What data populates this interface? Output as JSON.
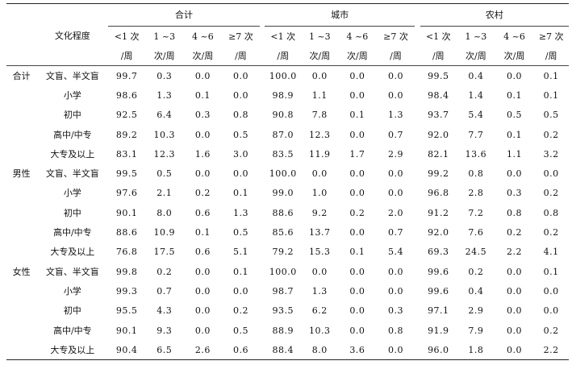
{
  "header": {
    "education_label": "文化程度",
    "groups": [
      "合计",
      "城市",
      "农村"
    ],
    "freq_line1": [
      "<1 次",
      "1 ~3",
      "4 ~6",
      "≥7 次"
    ],
    "freq_line2": [
      "/周",
      "次/周",
      "次/周",
      "/周"
    ]
  },
  "sections": [
    {
      "label": "合计",
      "rows": [
        {
          "level": "文盲、半文盲",
          "values": [
            "99.7",
            "0.3",
            "0.0",
            "0.0",
            "100.0",
            "0.0",
            "0.0",
            "0.0",
            "99.5",
            "0.4",
            "0.0",
            "0.1"
          ]
        },
        {
          "level": "小学",
          "values": [
            "98.6",
            "1.3",
            "0.1",
            "0.0",
            "98.9",
            "1.1",
            "0.0",
            "0.0",
            "98.4",
            "1.4",
            "0.1",
            "0.1"
          ]
        },
        {
          "level": "初中",
          "values": [
            "92.5",
            "6.4",
            "0.3",
            "0.8",
            "90.8",
            "7.8",
            "0.1",
            "1.3",
            "93.7",
            "5.4",
            "0.5",
            "0.5"
          ]
        },
        {
          "level": "高中/中专",
          "values": [
            "89.2",
            "10.3",
            "0.0",
            "0.5",
            "87.0",
            "12.3",
            "0.0",
            "0.7",
            "92.0",
            "7.7",
            "0.1",
            "0.2"
          ]
        },
        {
          "level": "大专及以上",
          "values": [
            "83.1",
            "12.3",
            "1.6",
            "3.0",
            "83.5",
            "11.9",
            "1.7",
            "2.9",
            "82.1",
            "13.6",
            "1.1",
            "3.2"
          ]
        }
      ]
    },
    {
      "label": "男性",
      "rows": [
        {
          "level": "文盲、半文盲",
          "values": [
            "99.5",
            "0.5",
            "0.0",
            "0.0",
            "100.0",
            "0.0",
            "0.0",
            "0.0",
            "99.2",
            "0.8",
            "0.0",
            "0.0"
          ]
        },
        {
          "level": "小学",
          "values": [
            "97.6",
            "2.1",
            "0.2",
            "0.1",
            "99.0",
            "1.0",
            "0.0",
            "0.0",
            "96.8",
            "2.8",
            "0.3",
            "0.2"
          ]
        },
        {
          "level": "初中",
          "values": [
            "90.1",
            "8.0",
            "0.6",
            "1.3",
            "88.6",
            "9.2",
            "0.2",
            "2.0",
            "91.2",
            "7.2",
            "0.8",
            "0.8"
          ]
        },
        {
          "level": "高中/中专",
          "values": [
            "88.6",
            "10.9",
            "0.1",
            "0.5",
            "85.6",
            "13.7",
            "0.0",
            "0.7",
            "92.0",
            "7.6",
            "0.2",
            "0.2"
          ]
        },
        {
          "level": "大专及以上",
          "values": [
            "76.8",
            "17.5",
            "0.6",
            "5.1",
            "79.2",
            "15.3",
            "0.1",
            "5.4",
            "69.3",
            "24.5",
            "2.2",
            "4.1"
          ]
        }
      ]
    },
    {
      "label": "女性",
      "rows": [
        {
          "level": "文盲、半文盲",
          "values": [
            "99.8",
            "0.2",
            "0.0",
            "0.1",
            "100.0",
            "0.0",
            "0.0",
            "0.0",
            "99.6",
            "0.2",
            "0.0",
            "0.1"
          ]
        },
        {
          "level": "小学",
          "values": [
            "99.3",
            "0.7",
            "0.0",
            "0.0",
            "98.7",
            "1.3",
            "0.0",
            "0.0",
            "99.6",
            "0.4",
            "0.0",
            "0.0"
          ]
        },
        {
          "level": "初中",
          "values": [
            "95.5",
            "4.3",
            "0.0",
            "0.2",
            "93.5",
            "6.2",
            "0.0",
            "0.3",
            "97.1",
            "2.9",
            "0.0",
            "0.0"
          ]
        },
        {
          "level": "高中/中专",
          "values": [
            "90.1",
            "9.3",
            "0.0",
            "0.5",
            "88.9",
            "10.3",
            "0.0",
            "0.8",
            "91.9",
            "7.9",
            "0.0",
            "0.2"
          ]
        },
        {
          "level": "大专及以上",
          "values": [
            "90.4",
            "6.5",
            "2.6",
            "0.6",
            "88.4",
            "8.0",
            "3.6",
            "0.0",
            "96.0",
            "1.8",
            "0.0",
            "2.2"
          ]
        }
      ]
    }
  ]
}
